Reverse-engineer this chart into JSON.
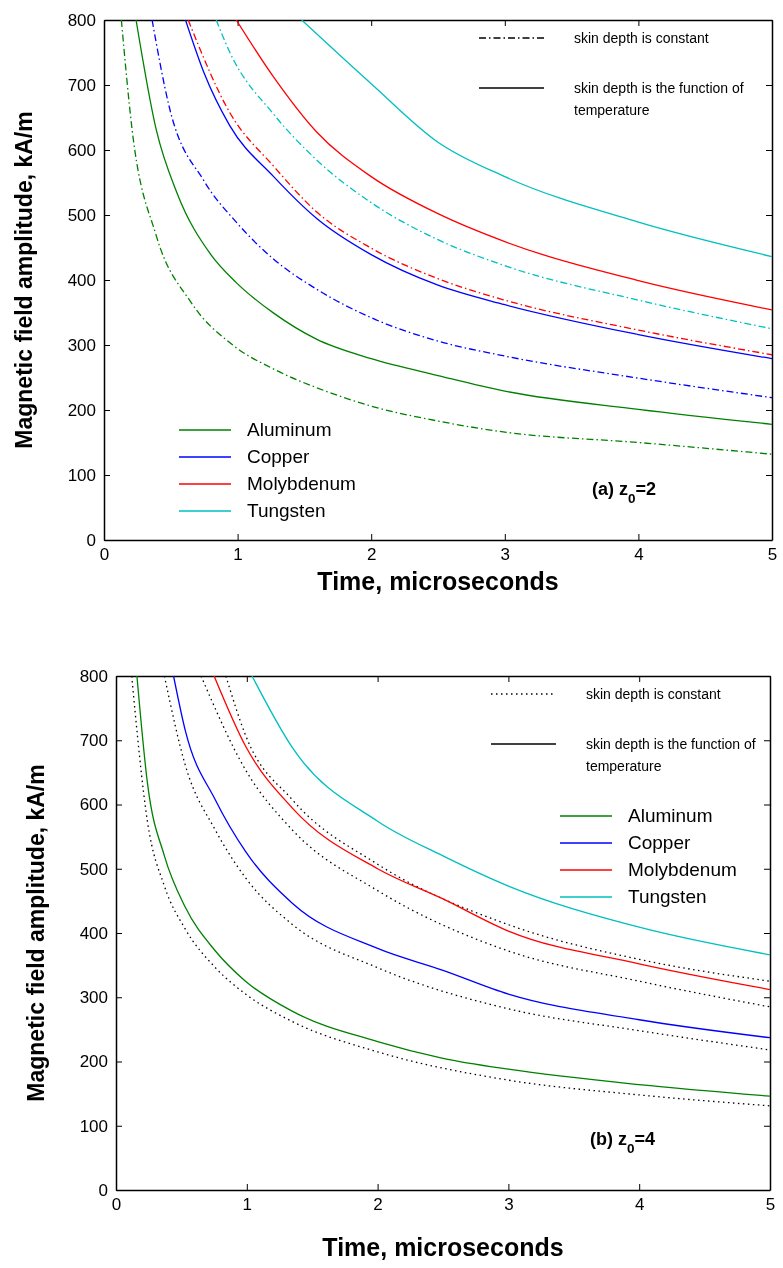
{
  "chart_data": [
    {
      "type": "line",
      "xlabel": "Time, microseconds",
      "ylabel": "Magnetic field amplitude, kA/m",
      "xlim": [
        0,
        5
      ],
      "ylim": [
        0,
        800
      ],
      "xticks": [
        0,
        1,
        2,
        3,
        4,
        5
      ],
      "yticks": [
        0,
        100,
        200,
        300,
        400,
        500,
        600,
        700,
        800
      ],
      "grid": false,
      "legend": "bottom left",
      "annotations": [
        "skin depth is constant",
        "skin depth is the function of temperature",
        "(a) z$_{0}$=2"
      ],
      "series": [
        {
          "color": "#008000",
          "line_style": "dashed",
          "x": [
            0.13,
            0.21,
            0.39,
            0.65,
            0.97,
            1.27,
            1.66,
            2,
            2.5,
            3,
            4,
            5
          ],
          "values": [
            800,
            632,
            469,
            366,
            299,
            263,
            229,
            206,
            183,
            166,
            150,
            132
          ]
        },
        {
          "color": "#0000ff",
          "line_style": "dashed",
          "x": [
            0.36,
            0.49,
            0.75,
            0.99,
            1.27,
            1.59,
            2,
            2.5,
            3,
            4,
            5
          ],
          "values": [
            800,
            665,
            552,
            489,
            432,
            386,
            342,
            306,
            283,
            249,
            219
          ]
        },
        {
          "color": "#ff0000",
          "line_style": "dashed",
          "x": [
            0.63,
            0.94,
            1.27,
            1.59,
            2,
            2.5,
            3,
            4,
            5
          ],
          "values": [
            800,
            658,
            575,
            505,
            449,
            402,
            369,
            323,
            285
          ]
        },
        {
          "color": "#00bfbf",
          "line_style": "dashed",
          "x": [
            0.84,
            0.94,
            1.27,
            1.59,
            2,
            2.5,
            3,
            4,
            5
          ],
          "values": [
            800,
            751,
            655,
            585,
            519,
            462,
            422,
            369,
            325
          ]
        },
        {
          "name": "Aluminum",
          "color": "#008000",
          "line_style": "solid",
          "x": [
            0.24,
            0.39,
            0.55,
            0.8,
            0.99,
            1.27,
            1.59,
            2,
            2.5,
            3,
            4,
            5
          ],
          "values": [
            800,
            632,
            532,
            439,
            396,
            349,
            309,
            279,
            253,
            229,
            201,
            178
          ]
        },
        {
          "name": "Copper",
          "color": "#0000ff",
          "line_style": "solid",
          "x": [
            0.61,
            0.75,
            0.94,
            1.27,
            1.59,
            2,
            2.5,
            3,
            4,
            5
          ],
          "values": [
            800,
            718,
            638,
            559,
            495,
            439,
            392,
            362,
            316,
            279
          ]
        },
        {
          "name": "Molybdenum",
          "color": "#ff0000",
          "line_style": "solid",
          "x": [
            0.99,
            1.27,
            1.59,
            2,
            2.5,
            3,
            4,
            5
          ],
          "values": [
            800,
            712,
            628,
            559,
            502,
            459,
            399,
            354
          ]
        },
        {
          "name": "Tungsten",
          "color": "#00bfbf",
          "line_style": "solid",
          "x": [
            1.48,
            2,
            2.5,
            3,
            4,
            5
          ],
          "values": [
            800,
            702,
            612,
            559,
            489,
            436
          ]
        }
      ]
    },
    {
      "type": "line",
      "xlabel": "Time, microseconds",
      "ylabel": "Magnetic field amplitude, kA/m",
      "xlim": [
        0,
        5
      ],
      "ylim": [
        0,
        800
      ],
      "xticks": [
        0,
        1,
        2,
        3,
        4,
        5
      ],
      "yticks": [
        0,
        100,
        200,
        300,
        400,
        500,
        600,
        700,
        800
      ],
      "grid": false,
      "legend": "top right",
      "annotations": [
        "skin depth is constant",
        "skin depth is the function of temperature",
        "(b) z$_{0}$=4"
      ],
      "series": [
        {
          "color": "#000000",
          "line_style": "dotted",
          "x": [
            0.12,
            0.24,
            0.37,
            0.53,
            0.76,
            0.99,
            1.35,
            2,
            3,
            4,
            5
          ],
          "values": [
            800,
            574,
            473,
            406,
            346,
            305,
            262,
            215,
            171,
            148,
            131
          ]
        },
        {
          "color": "#000000",
          "line_style": "dotted",
          "x": [
            0.37,
            0.53,
            0.76,
            0.99,
            1.35,
            2,
            3,
            4,
            5
          ],
          "values": [
            800,
            661,
            560,
            486,
            413,
            346,
            282,
            248,
            218
          ]
        },
        {
          "color": "#000000",
          "line_style": "dotted",
          "x": [
            0.65,
            0.99,
            1.35,
            2,
            3,
            4,
            5
          ],
          "values": [
            800,
            654,
            560,
            466,
            372,
            325,
            285
          ]
        },
        {
          "color": "#000000",
          "line_style": "dotted",
          "x": [
            0.84,
            0.99,
            1.35,
            2,
            3,
            4,
            5
          ],
          "values": [
            800,
            708,
            607,
            507,
            413,
            359,
            325
          ]
        },
        {
          "name": "Aluminum",
          "color": "#008000",
          "line_style": "solid",
          "x": [
            0.16,
            0.24,
            0.37,
            0.53,
            0.76,
            0.99,
            1.35,
            2,
            2.5,
            3,
            4,
            5
          ],
          "values": [
            800,
            634,
            520,
            440,
            372,
            325,
            278,
            231,
            205,
            188,
            164,
            146
          ]
        },
        {
          "name": "Copper",
          "color": "#0000ff",
          "line_style": "solid",
          "x": [
            0.44,
            0.53,
            0.76,
            0.99,
            1.35,
            2,
            2.5,
            3,
            4,
            5
          ],
          "values": [
            800,
            715,
            607,
            527,
            446,
            376,
            342,
            305,
            265,
            237
          ]
        },
        {
          "name": "Molybdenum",
          "color": "#ff0000",
          "line_style": "solid",
          "x": [
            0.75,
            0.99,
            1.35,
            2,
            2.5,
            3,
            4,
            5
          ],
          "values": [
            800,
            691,
            594,
            500,
            453,
            403,
            352,
            312
          ]
        },
        {
          "name": "Tungsten",
          "color": "#00bfbf",
          "line_style": "solid",
          "x": [
            1.04,
            1.35,
            2,
            2.5,
            3,
            4,
            5
          ],
          "values": [
            800,
            688,
            574,
            520,
            473,
            409,
            366
          ]
        }
      ]
    }
  ]
}
